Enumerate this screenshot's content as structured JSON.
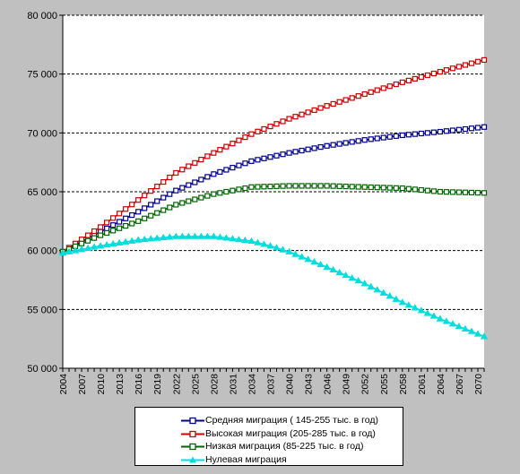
{
  "chart_data": {
    "type": "line",
    "title": "",
    "xlabel": "",
    "ylabel": "",
    "ylim": [
      50000,
      80000
    ],
    "xlim": [
      2004,
      2071
    ],
    "y_ticks": [
      "50 000",
      "55 000",
      "60 000",
      "65 000",
      "70 000",
      "75 000",
      "80 000"
    ],
    "x_ticks": [
      "2004",
      "2007",
      "2010",
      "2013",
      "2016",
      "2019",
      "2022",
      "2025",
      "2028",
      "2031",
      "2034",
      "2037",
      "2040",
      "2043",
      "2046",
      "2049",
      "2052",
      "2055",
      "2058",
      "2061",
      "2064",
      "2067",
      "2070"
    ],
    "grid": "horizontal dashed",
    "legend_position": "bottom",
    "series": [
      {
        "name": "Средняя миграция ( 145-255  тыс. в год)",
        "color": "#00008b",
        "marker": "square",
        "x": [
          2004,
          2010,
          2016,
          2022,
          2028,
          2034,
          2040,
          2046,
          2052,
          2058,
          2064,
          2071
        ],
        "values": [
          59900,
          61600,
          63300,
          65100,
          66500,
          67600,
          68300,
          68900,
          69400,
          69800,
          70100,
          70500
        ]
      },
      {
        "name": "Высокая миграция (205-285 тыс. в год)",
        "color": "#cc0000",
        "marker": "square",
        "x": [
          2004,
          2010,
          2016,
          2022,
          2028,
          2034,
          2040,
          2046,
          2052,
          2058,
          2064,
          2071
        ],
        "values": [
          59900,
          62000,
          64300,
          66600,
          68300,
          69900,
          71200,
          72300,
          73300,
          74300,
          75200,
          76200
        ]
      },
      {
        "name": "Низкая миграция  (85-225  тыс. в год)",
        "color": "#006400",
        "marker": "square",
        "x": [
          2004,
          2010,
          2016,
          2022,
          2028,
          2034,
          2040,
          2046,
          2052,
          2058,
          2064,
          2071
        ],
        "values": [
          59900,
          61300,
          62500,
          63900,
          64800,
          65400,
          65500,
          65500,
          65400,
          65300,
          65000,
          64900
        ]
      },
      {
        "name": "Нулевая миграция",
        "color": "#00dddd",
        "marker": "triangle",
        "x": [
          2004,
          2010,
          2016,
          2022,
          2028,
          2034,
          2037,
          2040,
          2046,
          2052,
          2058,
          2064,
          2071
        ],
        "values": [
          59800,
          60400,
          60900,
          61200,
          61200,
          60800,
          60400,
          59900,
          58600,
          57200,
          55600,
          54200,
          52700
        ]
      }
    ]
  }
}
